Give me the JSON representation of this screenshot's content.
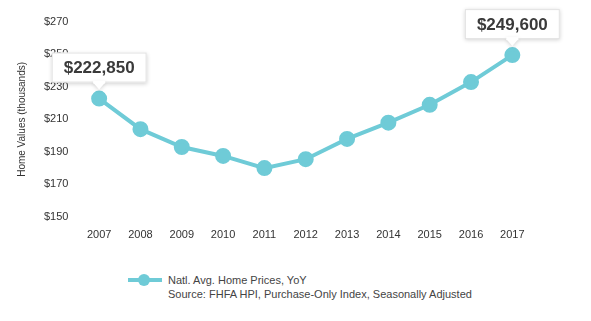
{
  "chart_data": {
    "type": "line",
    "y_label": "Home Values (thousands)",
    "categories": [
      "2007",
      "2008",
      "2009",
      "2010",
      "2011",
      "2012",
      "2013",
      "2014",
      "2015",
      "2016",
      "2017"
    ],
    "series": [
      {
        "name": "Natl. Avg. Home Prices, YoY",
        "color": "#6fcbd7",
        "marker": "circle",
        "line_style": "solid",
        "values": [
          222.85,
          204,
          193,
          187.5,
          180,
          185.5,
          198,
          208,
          219,
          233,
          249.6
        ]
      }
    ],
    "ylim": [
      150,
      270
    ],
    "yticks": [
      {
        "value": 150,
        "label": "$150"
      },
      {
        "value": 170,
        "label": "$170"
      },
      {
        "value": 190,
        "label": "$190"
      },
      {
        "value": 210,
        "label": "$210"
      },
      {
        "value": 230,
        "label": "$230"
      },
      {
        "value": 250,
        "label": "$250"
      },
      {
        "value": 270,
        "label": "$270"
      }
    ],
    "grid": false,
    "legend": "bottom",
    "annotations": [
      {
        "x": "2007",
        "value": 222.85,
        "label": "$222,850"
      },
      {
        "x": "2017",
        "value": 249.6,
        "label": "$249,600"
      }
    ],
    "source": "Source: FHFA HPI, Purchase-Only Index, Seasonally Adjusted"
  }
}
